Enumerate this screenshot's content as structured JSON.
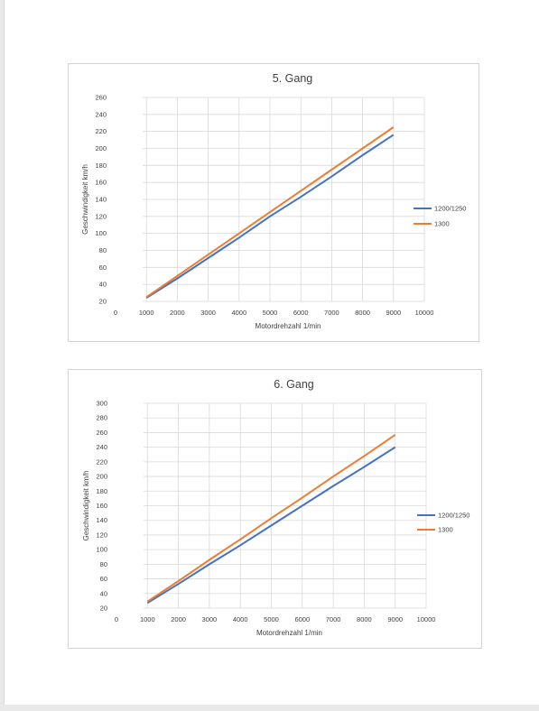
{
  "colors": {
    "series_1": "#4472c4",
    "series_2": "#ed7d31",
    "grid": "#d9d9d9"
  },
  "chart_data": [
    {
      "type": "line",
      "title": "5. Gang",
      "xlabel": "Motordrehzahl 1/min",
      "ylabel": "Geschwindigkeit km/h",
      "xlim": [
        0,
        10000
      ],
      "ylim": [
        20,
        260
      ],
      "x_ticks": [
        0,
        1000,
        2000,
        3000,
        4000,
        5000,
        6000,
        7000,
        8000,
        9000,
        10000
      ],
      "y_ticks": [
        20,
        40,
        60,
        80,
        100,
        120,
        140,
        160,
        180,
        200,
        220,
        240,
        260
      ],
      "grid": true,
      "legend_position": "right",
      "series": [
        {
          "name": "1200/1250",
          "x": [
            1000,
            2000,
            3000,
            4000,
            5000,
            6000,
            7000,
            8000,
            9000
          ],
          "y": [
            24,
            47,
            71,
            95,
            120,
            143,
            167,
            192,
            216
          ]
        },
        {
          "name": "1300",
          "x": [
            1000,
            2000,
            3000,
            4000,
            5000,
            6000,
            7000,
            8000,
            9000
          ],
          "y": [
            25,
            50,
            75,
            100,
            125,
            150,
            175,
            200,
            225
          ]
        }
      ]
    },
    {
      "type": "line",
      "title": "6. Gang",
      "xlabel": "Motordrehzahl 1/min",
      "ylabel": "Geschwindigkeit km/h",
      "xlim": [
        0,
        10000
      ],
      "ylim": [
        20,
        300
      ],
      "x_ticks": [
        0,
        1000,
        2000,
        3000,
        4000,
        5000,
        6000,
        7000,
        8000,
        9000,
        10000
      ],
      "y_ticks": [
        20,
        40,
        60,
        80,
        100,
        120,
        140,
        160,
        180,
        200,
        220,
        240,
        260,
        280,
        300
      ],
      "grid": true,
      "legend_position": "right",
      "series": [
        {
          "name": "1200/1250",
          "x": [
            1000,
            2000,
            3000,
            4000,
            5000,
            6000,
            7000,
            8000,
            9000
          ],
          "y": [
            27,
            53,
            80,
            106,
            133,
            160,
            187,
            213,
            240
          ]
        },
        {
          "name": "1300",
          "x": [
            1000,
            2000,
            3000,
            4000,
            5000,
            6000,
            7000,
            8000,
            9000
          ],
          "y": [
            29,
            57,
            86,
            114,
            143,
            171,
            200,
            228,
            257
          ]
        }
      ]
    }
  ]
}
